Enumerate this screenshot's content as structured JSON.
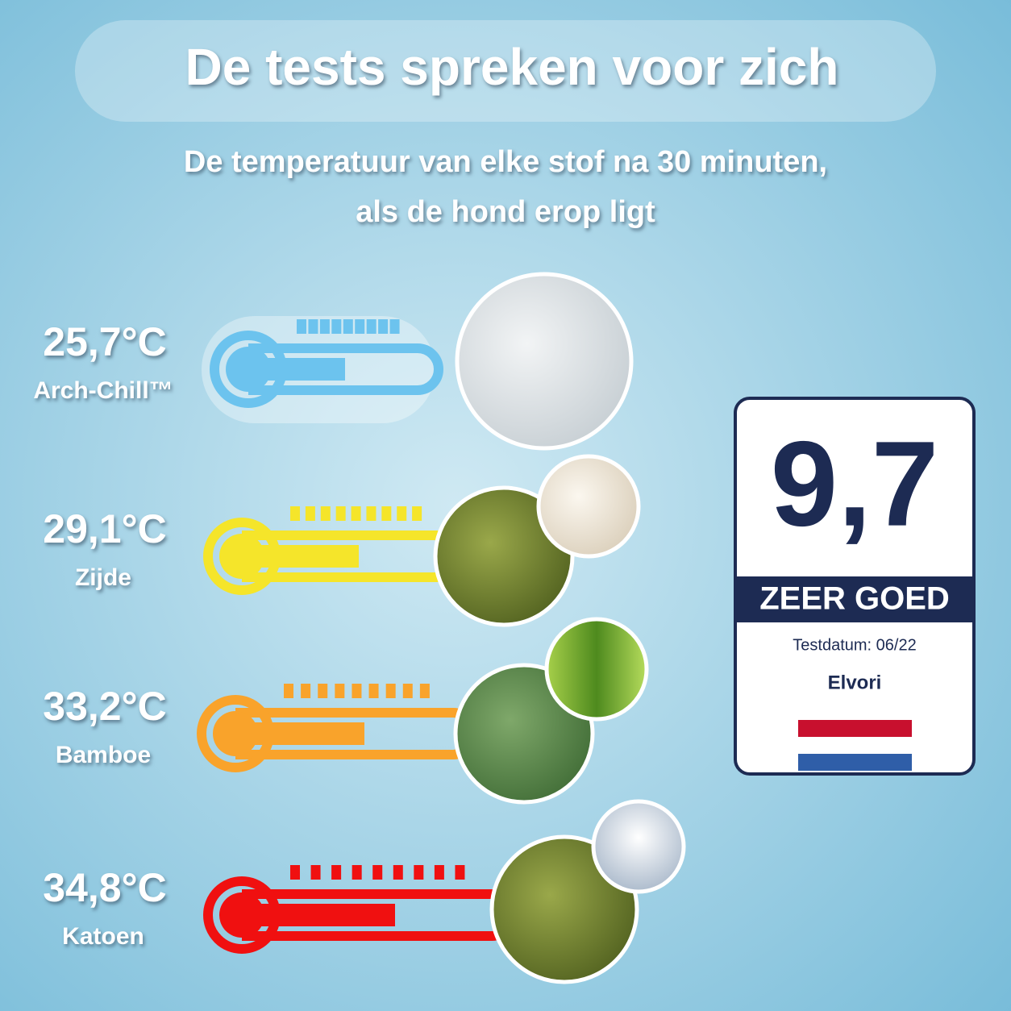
{
  "header": {
    "title": "De tests spreken voor zich",
    "subtitle_lines": [
      "De temperatuur van elke stof na 30 minuten,",
      "als de hond erop ligt"
    ]
  },
  "items": [
    {
      "temperature": "25,7°C",
      "material": "Arch-Chill™"
    },
    {
      "temperature": "29,1°C",
      "material": "Zijde"
    },
    {
      "temperature": "33,2°C",
      "material": "Bamboe"
    },
    {
      "temperature": "34,8°C",
      "material": "Katoen"
    }
  ],
  "badge": {
    "score": "9,7",
    "rating": "ZEER GOED",
    "test_date": "Testdatum: 06/22",
    "brand": "Elvori"
  }
}
